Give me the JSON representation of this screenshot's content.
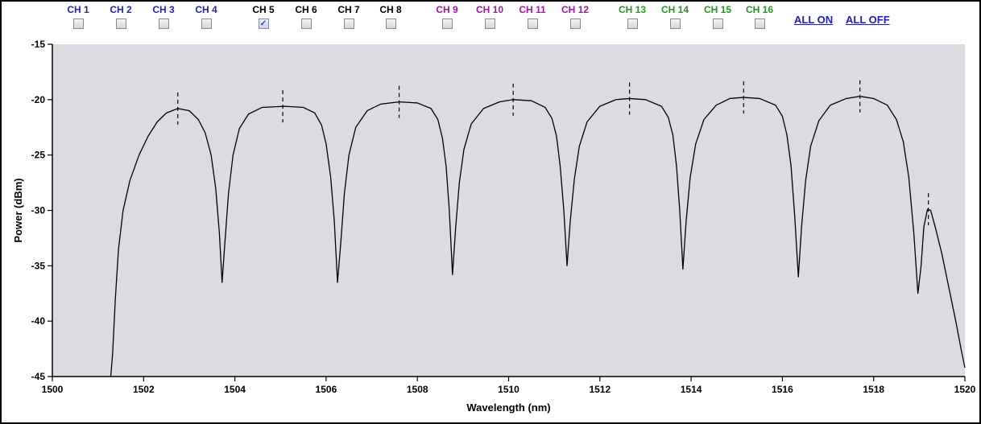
{
  "controls": {
    "channels": [
      {
        "label": "CH 1",
        "color": "#1e1ecc",
        "checked": false
      },
      {
        "label": "CH 2",
        "color": "#1e1ecc",
        "checked": false
      },
      {
        "label": "CH 3",
        "color": "#1e1ecc",
        "checked": false
      },
      {
        "label": "CH 4",
        "color": "#1e1ecc",
        "checked": false
      },
      {
        "label": "CH 5",
        "color": "#000000",
        "checked": true
      },
      {
        "label": "CH 6",
        "color": "#000000",
        "checked": false
      },
      {
        "label": "CH 7",
        "color": "#000000",
        "checked": false
      },
      {
        "label": "CH 8",
        "color": "#000000",
        "checked": false
      },
      {
        "label": "CH 9",
        "color": "#aa10aa",
        "checked": false
      },
      {
        "label": "CH 10",
        "color": "#aa10aa",
        "checked": false
      },
      {
        "label": "CH 11",
        "color": "#aa10aa",
        "checked": false
      },
      {
        "label": "CH 12",
        "color": "#aa10aa",
        "checked": false
      },
      {
        "label": "CH 13",
        "color": "#1f9a1f",
        "checked": false
      },
      {
        "label": "CH 14",
        "color": "#1f9a1f",
        "checked": false
      },
      {
        "label": "CH 15",
        "color": "#1f9a1f",
        "checked": false
      },
      {
        "label": "CH 16",
        "color": "#1f9a1f",
        "checked": false
      }
    ],
    "all_on_label": "ALL ON",
    "all_off_label": "ALL OFF",
    "checkbox_checked_icon": "checkmark-icon"
  },
  "chart_data": {
    "type": "line",
    "xlabel": "Wavelength (nm)",
    "ylabel": "Power (dBm)",
    "xlim": [
      1500,
      1520
    ],
    "ylim": [
      -45,
      -15
    ],
    "xticks": [
      1500,
      1502,
      1504,
      1506,
      1508,
      1510,
      1512,
      1514,
      1516,
      1518,
      1520
    ],
    "yticks": [
      -15,
      -20,
      -25,
      -30,
      -35,
      -40,
      -45
    ],
    "grid": false,
    "plot_background": "#dcdbe1",
    "line_color": "#000000",
    "series": [
      {
        "points": [
          [
            1501.28,
            -45.0
          ],
          [
            1501.32,
            -43.0
          ],
          [
            1501.38,
            -38.0
          ],
          [
            1501.45,
            -33.5
          ],
          [
            1501.55,
            -30.0
          ],
          [
            1501.7,
            -27.3
          ],
          [
            1501.9,
            -25.0
          ],
          [
            1502.1,
            -23.3
          ],
          [
            1502.3,
            -22.0
          ],
          [
            1502.5,
            -21.2
          ],
          [
            1502.75,
            -20.8
          ],
          [
            1503.0,
            -21.0
          ],
          [
            1503.2,
            -21.8
          ],
          [
            1503.35,
            -23.0
          ],
          [
            1503.48,
            -25.0
          ],
          [
            1503.58,
            -28.0
          ],
          [
            1503.66,
            -32.0
          ],
          [
            1503.72,
            -36.5
          ],
          [
            1503.78,
            -33.0
          ],
          [
            1503.86,
            -28.5
          ],
          [
            1503.96,
            -25.0
          ],
          [
            1504.1,
            -22.6
          ],
          [
            1504.3,
            -21.3
          ],
          [
            1504.6,
            -20.7
          ],
          [
            1505.1,
            -20.6
          ],
          [
            1505.5,
            -20.7
          ],
          [
            1505.75,
            -21.2
          ],
          [
            1505.9,
            -22.3
          ],
          [
            1506.0,
            -24.0
          ],
          [
            1506.1,
            -27.0
          ],
          [
            1506.18,
            -31.0
          ],
          [
            1506.25,
            -36.5
          ],
          [
            1506.32,
            -33.0
          ],
          [
            1506.4,
            -28.5
          ],
          [
            1506.5,
            -25.0
          ],
          [
            1506.65,
            -22.5
          ],
          [
            1506.9,
            -21.0
          ],
          [
            1507.2,
            -20.4
          ],
          [
            1507.6,
            -20.2
          ],
          [
            1508.0,
            -20.3
          ],
          [
            1508.3,
            -20.8
          ],
          [
            1508.45,
            -21.8
          ],
          [
            1508.55,
            -23.5
          ],
          [
            1508.63,
            -26.0
          ],
          [
            1508.7,
            -30.0
          ],
          [
            1508.77,
            -35.8
          ],
          [
            1508.84,
            -31.5
          ],
          [
            1508.92,
            -27.5
          ],
          [
            1509.02,
            -24.5
          ],
          [
            1509.18,
            -22.2
          ],
          [
            1509.45,
            -20.8
          ],
          [
            1509.8,
            -20.2
          ],
          [
            1510.1,
            -20.0
          ],
          [
            1510.5,
            -20.1
          ],
          [
            1510.8,
            -20.7
          ],
          [
            1510.95,
            -21.7
          ],
          [
            1511.05,
            -23.3
          ],
          [
            1511.13,
            -26.0
          ],
          [
            1511.21,
            -30.0
          ],
          [
            1511.28,
            -35.0
          ],
          [
            1511.35,
            -31.0
          ],
          [
            1511.44,
            -27.2
          ],
          [
            1511.55,
            -24.2
          ],
          [
            1511.72,
            -22.0
          ],
          [
            1512.0,
            -20.6
          ],
          [
            1512.35,
            -20.0
          ],
          [
            1512.65,
            -19.9
          ],
          [
            1513.0,
            -20.0
          ],
          [
            1513.35,
            -20.6
          ],
          [
            1513.5,
            -21.6
          ],
          [
            1513.6,
            -23.2
          ],
          [
            1513.68,
            -26.0
          ],
          [
            1513.75,
            -30.0
          ],
          [
            1513.82,
            -35.3
          ],
          [
            1513.89,
            -31.0
          ],
          [
            1513.98,
            -27.0
          ],
          [
            1514.1,
            -24.0
          ],
          [
            1514.28,
            -21.8
          ],
          [
            1514.55,
            -20.5
          ],
          [
            1514.85,
            -19.9
          ],
          [
            1515.15,
            -19.8
          ],
          [
            1515.5,
            -19.9
          ],
          [
            1515.85,
            -20.5
          ],
          [
            1516.0,
            -21.5
          ],
          [
            1516.1,
            -23.2
          ],
          [
            1516.19,
            -26.0
          ],
          [
            1516.27,
            -30.5
          ],
          [
            1516.35,
            -36.0
          ],
          [
            1516.42,
            -31.5
          ],
          [
            1516.51,
            -27.3
          ],
          [
            1516.62,
            -24.2
          ],
          [
            1516.8,
            -21.9
          ],
          [
            1517.05,
            -20.5
          ],
          [
            1517.4,
            -19.9
          ],
          [
            1517.7,
            -19.7
          ],
          [
            1518.0,
            -19.9
          ],
          [
            1518.3,
            -20.5
          ],
          [
            1518.5,
            -21.8
          ],
          [
            1518.65,
            -23.8
          ],
          [
            1518.77,
            -27.0
          ],
          [
            1518.88,
            -32.0
          ],
          [
            1518.97,
            -37.5
          ],
          [
            1519.04,
            -35.0
          ],
          [
            1519.1,
            -31.5
          ],
          [
            1519.18,
            -29.9
          ],
          [
            1519.25,
            -30.0
          ],
          [
            1519.35,
            -31.5
          ],
          [
            1519.5,
            -34.0
          ],
          [
            1519.65,
            -37.0
          ],
          [
            1519.8,
            -40.0
          ],
          [
            1519.92,
            -42.6
          ],
          [
            1520.0,
            -44.2
          ]
        ]
      }
    ],
    "peak_markers": [
      {
        "x": 1502.75,
        "y": -20.8
      },
      {
        "x": 1505.05,
        "y": -20.6
      },
      {
        "x": 1507.6,
        "y": -20.2
      },
      {
        "x": 1510.1,
        "y": -20.0
      },
      {
        "x": 1512.65,
        "y": -19.9
      },
      {
        "x": 1515.15,
        "y": -19.8
      },
      {
        "x": 1517.7,
        "y": -19.7
      },
      {
        "x": 1519.2,
        "y": -29.9
      }
    ]
  }
}
